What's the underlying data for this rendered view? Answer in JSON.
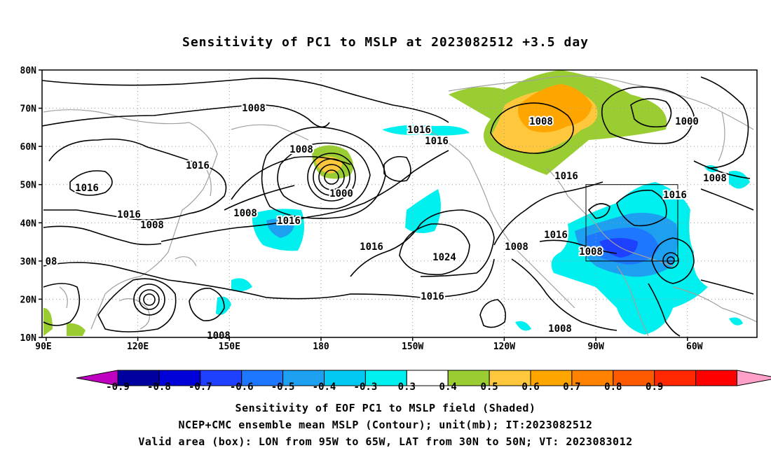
{
  "title": "Sensitivity of PC1 to MSLP at 2023082512 +3.5 day",
  "lat_labels": [
    "80N",
    "70N",
    "60N",
    "50N",
    "40N",
    "30N",
    "20N",
    "10N"
  ],
  "lon_labels": [
    "90E",
    "120E",
    "150E",
    "180",
    "150W",
    "120W",
    "90W",
    "60W"
  ],
  "contour_labels": [
    "1008",
    "1016",
    "1016",
    "1016",
    "1008",
    "1016",
    "1008",
    "1000",
    "1016",
    "1008",
    "1016",
    "1016",
    "1024",
    "1016",
    "1008",
    "1008",
    "1000",
    "1016",
    "1016",
    "1008",
    "1016",
    "1008",
    "1008",
    "08",
    "1008"
  ],
  "colorbar": {
    "colors": [
      "#c000c0",
      "#0000a0",
      "#0000d8",
      "#1e40ff",
      "#1e78ff",
      "#1ea0f0",
      "#00c8f0",
      "#00f0f0",
      "#ffffff",
      "#9acd32",
      "#ffc83c",
      "#ffa500",
      "#ff8200",
      "#ff5a00",
      "#ff2800",
      "#ff0000",
      "#ffa0c8"
    ],
    "labels": [
      "-0.9",
      "-0.8",
      "-0.7",
      "-0.6",
      "-0.5",
      "-0.4",
      "-0.3",
      "0.3",
      "0.4",
      "0.5",
      "0.6",
      "0.7",
      "0.8",
      "0.9"
    ]
  },
  "footer": {
    "line1": "Sensitivity of EOF PC1 to MSLP field (Shaded)",
    "line2": "NCEP+CMC ensemble mean MSLP (Contour); unit(mb); IT:2023082512",
    "line3": "Valid area (box): LON from 95W to 65W, LAT from 30N to 50N; VT: 2023083012"
  }
}
